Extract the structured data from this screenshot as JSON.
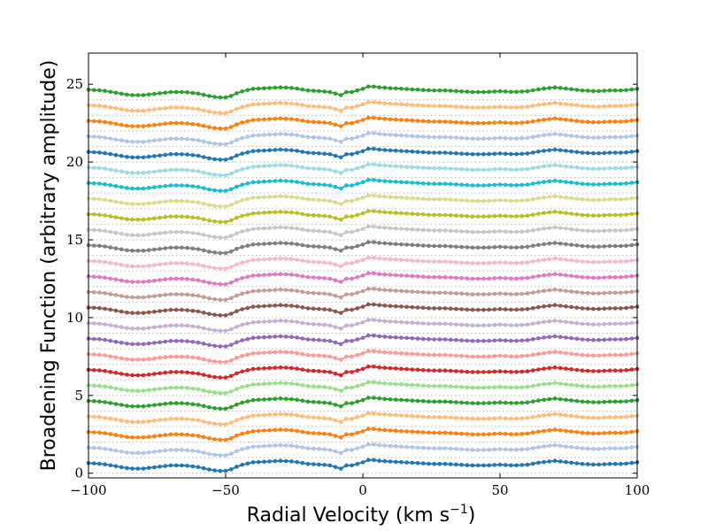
{
  "chart_data": {
    "type": "line",
    "title": "",
    "xlabel": "Radial Velocity (km s",
    "xlabel_sup": "−1",
    "xlabel_end": ")",
    "ylabel": "Broadening Function (arbitrary amplitude)",
    "xlim": [
      -100,
      100
    ],
    "ylim": [
      -0.3,
      27
    ],
    "xticks": [
      -100,
      -50,
      0,
      50,
      100
    ],
    "xtick_labels": [
      "−100",
      "−50",
      "0",
      "50",
      "100"
    ],
    "yticks": [
      0,
      5,
      10,
      15,
      20,
      25
    ],
    "ytick_labels": [
      "0",
      "5",
      "10",
      "15",
      "20",
      "25"
    ],
    "grid": "horizontal dotted baselines at each series offset",
    "legend": "none",
    "series_offset_step": 1,
    "series_count": 25,
    "series_colors": [
      "#1f77b4",
      "#aec7e8",
      "#ff7f0e",
      "#ffbb78",
      "#2ca02c",
      "#98df8a",
      "#d62728",
      "#ff9896",
      "#9467bd",
      "#c5b0d5",
      "#8c564b",
      "#c49c94",
      "#e377c2",
      "#f7b6d2",
      "#7f7f7f",
      "#c7c7c7",
      "#bcbd22",
      "#dbdb8d",
      "#17becf",
      "#9edae5",
      "#1f77b4",
      "#aec7e8",
      "#ff7f0e",
      "#ffbb78",
      "#2ca02c"
    ],
    "series_baselines": [
      0,
      1,
      2,
      3,
      4,
      5,
      6,
      7,
      8,
      9,
      10,
      11,
      12,
      13,
      14,
      15,
      16,
      17,
      18,
      19,
      20,
      21,
      22,
      23,
      24
    ],
    "profile_x": [
      -100,
      -95,
      -90,
      -85,
      -80,
      -75,
      -70,
      -65,
      -60,
      -55,
      -52,
      -50,
      -48,
      -45,
      -40,
      -35,
      -30,
      -25,
      -20,
      -15,
      -12,
      -10,
      -8,
      -6,
      -4,
      -2,
      0,
      2,
      4,
      6,
      10,
      15,
      20,
      25,
      30,
      35,
      40,
      45,
      50,
      55,
      60,
      65,
      70,
      75,
      80,
      85,
      90,
      95,
      100
    ],
    "profile_y": [
      0.65,
      0.6,
      0.45,
      0.3,
      0.3,
      0.4,
      0.5,
      0.5,
      0.4,
      0.2,
      0.15,
      0.15,
      0.25,
      0.5,
      0.7,
      0.75,
      0.8,
      0.75,
      0.6,
      0.55,
      0.5,
      0.4,
      0.3,
      0.5,
      0.5,
      0.6,
      0.7,
      0.85,
      0.85,
      0.8,
      0.75,
      0.7,
      0.65,
      0.6,
      0.6,
      0.55,
      0.5,
      0.5,
      0.55,
      0.5,
      0.55,
      0.7,
      0.8,
      0.7,
      0.6,
      0.55,
      0.6,
      0.6,
      0.7
    ]
  }
}
